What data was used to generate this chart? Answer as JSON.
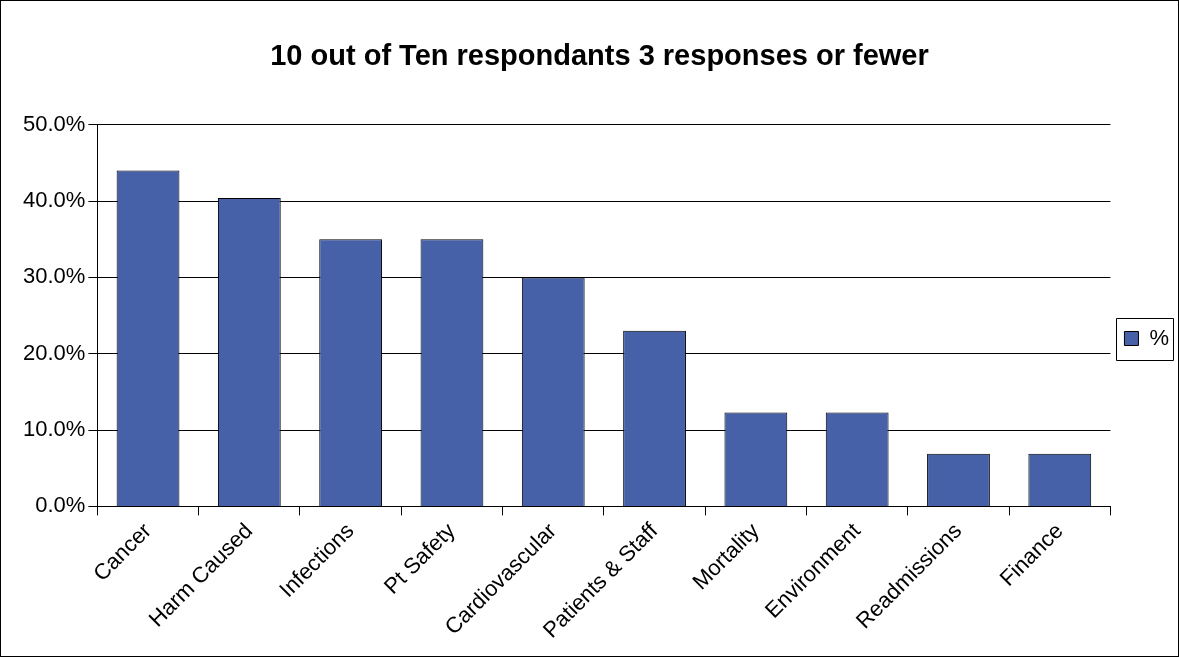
{
  "chart_data": {
    "type": "bar",
    "title": "10 out of Ten respondants 3 responses or fewer",
    "categories": [
      "Cancer",
      "Harm Caused",
      "Infections",
      "Pt Safety",
      "Cardiovascular",
      "Patients & Staff",
      "Mortality",
      "Environment",
      "Readmissions",
      "Finance"
    ],
    "series": [
      {
        "name": "%",
        "color": "#4661a8",
        "values": [
          44,
          40.4,
          35,
          35,
          30,
          23,
          12.3,
          12.3,
          6.9,
          6.9
        ]
      }
    ],
    "ylim": [
      0,
      50
    ],
    "yticks": [
      {
        "value": 0,
        "label": "0.0%"
      },
      {
        "value": 10,
        "label": "10.0%"
      },
      {
        "value": 20,
        "label": "20.0%"
      },
      {
        "value": 30,
        "label": "30.0%"
      },
      {
        "value": 40,
        "label": "40.0%"
      },
      {
        "value": 50,
        "label": "50.0%"
      }
    ],
    "grid": "y",
    "legend": "right"
  }
}
